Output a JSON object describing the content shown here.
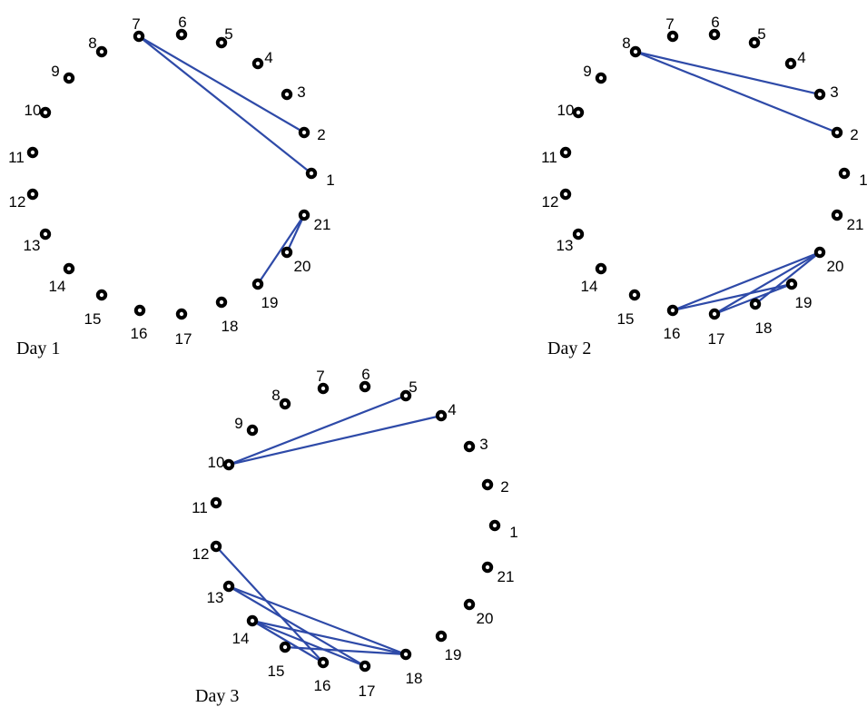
{
  "panels": [
    {
      "caption": "Day 1",
      "nodes": [
        "1",
        "2",
        "3",
        "4",
        "5",
        "6",
        "7",
        "8",
        "9",
        "10",
        "11",
        "12",
        "13",
        "14",
        "15",
        "16",
        "17",
        "18",
        "19",
        "20",
        "21"
      ],
      "edges": [
        [
          "7",
          "1"
        ],
        [
          "7",
          "2"
        ],
        [
          "19",
          "21"
        ],
        [
          "20",
          "21"
        ]
      ]
    },
    {
      "caption": "Day 2",
      "nodes": [
        "1",
        "2",
        "3",
        "4",
        "5",
        "6",
        "7",
        "8",
        "9",
        "10",
        "11",
        "12",
        "13",
        "14",
        "15",
        "16",
        "17",
        "18",
        "19",
        "20",
        "21"
      ],
      "edges": [
        [
          "8",
          "2"
        ],
        [
          "8",
          "3"
        ],
        [
          "16",
          "20"
        ],
        [
          "17",
          "20"
        ],
        [
          "18",
          "20"
        ],
        [
          "16",
          "19"
        ],
        [
          "17",
          "19"
        ]
      ]
    },
    {
      "caption": "Day 3",
      "nodes": [
        "1",
        "2",
        "3",
        "4",
        "5",
        "6",
        "7",
        "8",
        "9",
        "10",
        "11",
        "12",
        "13",
        "14",
        "15",
        "16",
        "17",
        "18",
        "19",
        "20",
        "21"
      ],
      "edges": [
        [
          "10",
          "4"
        ],
        [
          "10",
          "5"
        ],
        [
          "12",
          "16"
        ],
        [
          "13",
          "17"
        ],
        [
          "13",
          "18"
        ],
        [
          "14",
          "16"
        ],
        [
          "14",
          "17"
        ],
        [
          "14",
          "18"
        ],
        [
          "15",
          "18"
        ]
      ]
    }
  ]
}
